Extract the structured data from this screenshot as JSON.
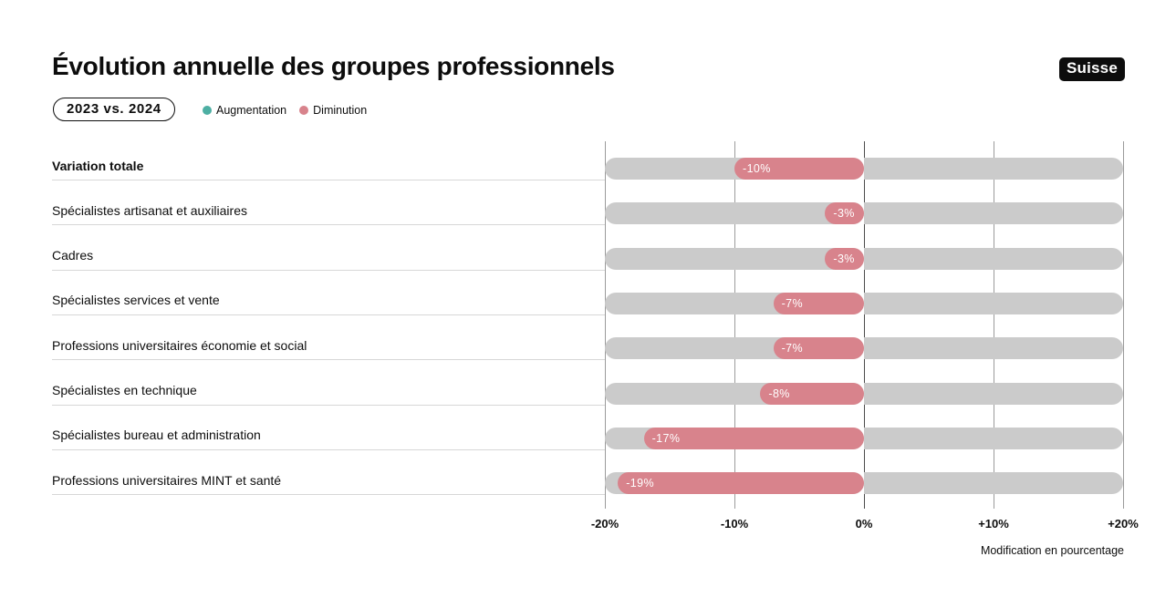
{
  "header": {
    "title": "Évolution annuelle des groupes professionnels",
    "country_badge": "Suisse",
    "period_badge": "2023 vs. 2024",
    "legend": [
      {
        "label": "Augmentation",
        "color": "#4DAFA3"
      },
      {
        "label": "Diminution",
        "color": "#D8838C"
      }
    ]
  },
  "chart_data": {
    "type": "bar",
    "orientation": "horizontal",
    "title": "Évolution annuelle des groupes professionnels",
    "subtitle": "2023 vs. 2024",
    "categories": [
      "Variation totale",
      "Spécialistes artisanat et auxiliaires",
      "Cadres",
      "Spécialistes services et vente",
      "Professions universitaires économie et social",
      "Spécialistes en technique",
      "Spécialistes bureau et administration",
      "Professions universitaires MINT et santé"
    ],
    "values": [
      -10,
      -3,
      -3,
      -7,
      -7,
      -8,
      -17,
      -19
    ],
    "value_labels": [
      "-10%",
      "-3%",
      "-3%",
      "-7%",
      "-7%",
      "-8%",
      "-17%",
      "-19%"
    ],
    "bold_rows": [
      0
    ],
    "xlim": [
      -20,
      20
    ],
    "x_ticks": [
      {
        "value": -20,
        "label": "-20%"
      },
      {
        "value": -10,
        "label": "-10%"
      },
      {
        "value": 0,
        "label": "0%"
      },
      {
        "value": 10,
        "label": "+10%"
      },
      {
        "value": 20,
        "label": "+20%"
      }
    ],
    "xlabel": "Modification en pourcentage",
    "grid": true,
    "legend_position": "top",
    "colors": {
      "increase": "#4DAFA3",
      "decrease": "#D8838C",
      "track": "#CBCBCB",
      "gridline": "#9b9b9b",
      "zero_line": "#4c4c4c"
    }
  }
}
